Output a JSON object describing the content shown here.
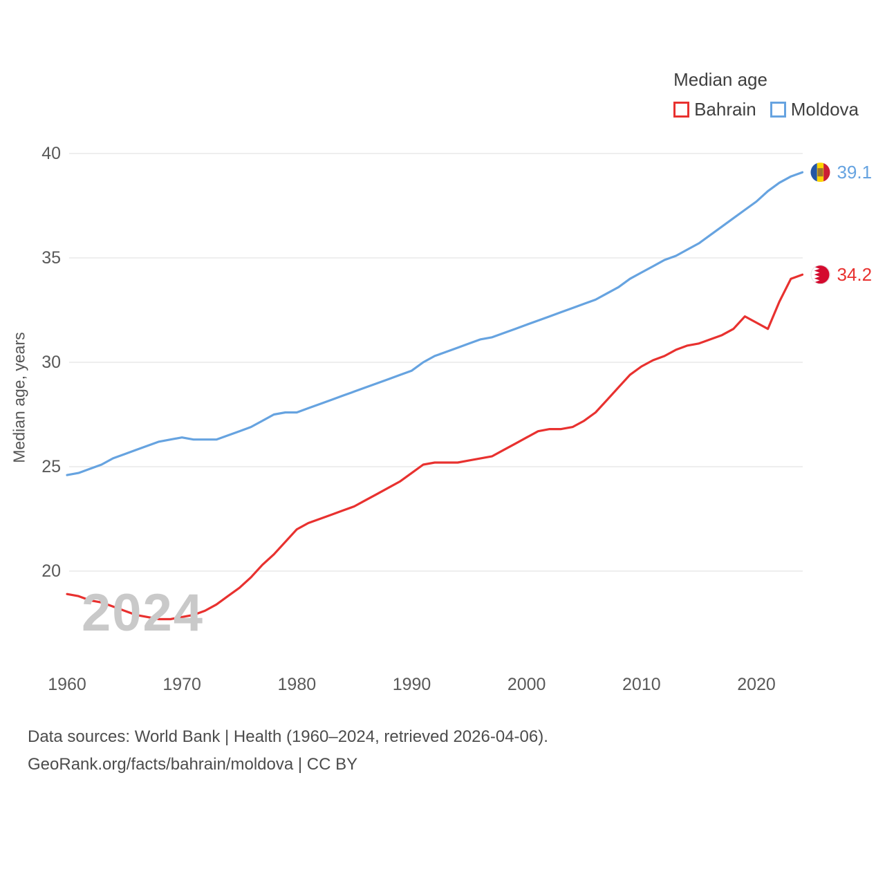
{
  "legend": {
    "title": "Median age",
    "items": [
      {
        "label": "Bahrain",
        "color": "#e8312f"
      },
      {
        "label": "Moldova",
        "color": "#66a3e0"
      }
    ]
  },
  "watermark": "2024",
  "footer": {
    "line1": "Data sources: World Bank | Health (1960–2024, retrieved 2026-04-06).",
    "line2": "GeoRank.org/facts/bahrain/moldova | CC BY"
  },
  "chart_data": {
    "type": "line",
    "title": "Median age",
    "xlabel": "",
    "ylabel": "Median age, years",
    "grid": "horizontal",
    "legend_position": "top-right",
    "ylim": [
      15.5,
      41
    ],
    "xlim": [
      1960,
      2024
    ],
    "yticks": [
      20,
      25,
      30,
      35,
      40
    ],
    "xticks": [
      1960,
      1970,
      1980,
      1990,
      2000,
      2010,
      2020
    ],
    "x": [
      1960,
      1961,
      1962,
      1963,
      1964,
      1965,
      1966,
      1967,
      1968,
      1969,
      1970,
      1971,
      1972,
      1973,
      1974,
      1975,
      1976,
      1977,
      1978,
      1979,
      1980,
      1981,
      1982,
      1983,
      1984,
      1985,
      1986,
      1987,
      1988,
      1989,
      1990,
      1991,
      1992,
      1993,
      1994,
      1995,
      1996,
      1997,
      1998,
      1999,
      2000,
      2001,
      2002,
      2003,
      2004,
      2005,
      2006,
      2007,
      2008,
      2009,
      2010,
      2011,
      2012,
      2013,
      2014,
      2015,
      2016,
      2017,
      2018,
      2019,
      2020,
      2021,
      2022,
      2023,
      2024
    ],
    "series": [
      {
        "name": "Bahrain",
        "color": "#e8312f",
        "end_label": "34.2",
        "end_value": 34.2,
        "values": [
          18.9,
          18.8,
          18.6,
          18.5,
          18.3,
          18.1,
          17.9,
          17.8,
          17.7,
          17.7,
          17.8,
          17.9,
          18.1,
          18.4,
          18.8,
          19.2,
          19.7,
          20.3,
          20.8,
          21.4,
          22.0,
          22.3,
          22.5,
          22.7,
          22.9,
          23.1,
          23.4,
          23.7,
          24.0,
          24.3,
          24.7,
          25.1,
          25.2,
          25.2,
          25.2,
          25.3,
          25.4,
          25.5,
          25.8,
          26.1,
          26.4,
          26.7,
          26.8,
          26.8,
          26.9,
          27.2,
          27.6,
          28.2,
          28.8,
          29.4,
          29.8,
          30.1,
          30.3,
          30.6,
          30.8,
          30.9,
          31.1,
          31.3,
          31.6,
          32.2,
          31.9,
          31.6,
          32.9,
          34.0,
          34.2
        ]
      },
      {
        "name": "Moldova",
        "color": "#66a3e0",
        "end_label": "39.1",
        "end_value": 39.1,
        "values": [
          24.6,
          24.7,
          24.9,
          25.1,
          25.4,
          25.6,
          25.8,
          26.0,
          26.2,
          26.3,
          26.4,
          26.3,
          26.3,
          26.3,
          26.5,
          26.7,
          26.9,
          27.2,
          27.5,
          27.6,
          27.6,
          27.8,
          28.0,
          28.2,
          28.4,
          28.6,
          28.8,
          29.0,
          29.2,
          29.4,
          29.6,
          30.0,
          30.3,
          30.5,
          30.7,
          30.9,
          31.1,
          31.2,
          31.4,
          31.6,
          31.8,
          32.0,
          32.2,
          32.4,
          32.6,
          32.8,
          33.0,
          33.3,
          33.6,
          34.0,
          34.3,
          34.6,
          34.9,
          35.1,
          35.4,
          35.7,
          36.1,
          36.5,
          36.9,
          37.3,
          37.7,
          38.2,
          38.6,
          38.9,
          39.1
        ]
      }
    ]
  }
}
